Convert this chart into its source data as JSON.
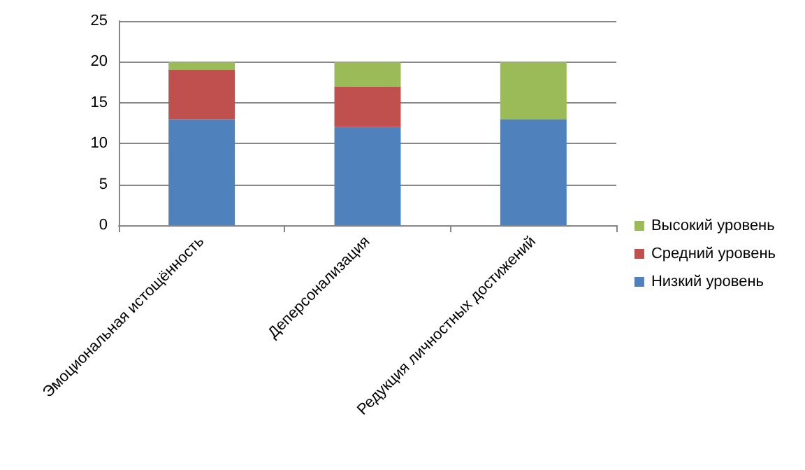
{
  "chart_data": {
    "type": "bar",
    "stacked": true,
    "categories": [
      "Эмоциональная истощённость",
      "Деперсонализация",
      "Редукция личностных достижений"
    ],
    "series": [
      {
        "name": "Низкий уровень",
        "color": "#4f81bd",
        "values": [
          13,
          12,
          13
        ]
      },
      {
        "name": "Средний уровень",
        "color": "#c0504d",
        "values": [
          6,
          5,
          0
        ]
      },
      {
        "name": "Высокий уровень",
        "color": "#9bbb59",
        "values": [
          1,
          3,
          7
        ]
      }
    ],
    "ylim": [
      0,
      25
    ],
    "yticks": [
      0,
      5,
      10,
      15,
      20,
      25
    ],
    "grid": "y",
    "legend": "right"
  }
}
